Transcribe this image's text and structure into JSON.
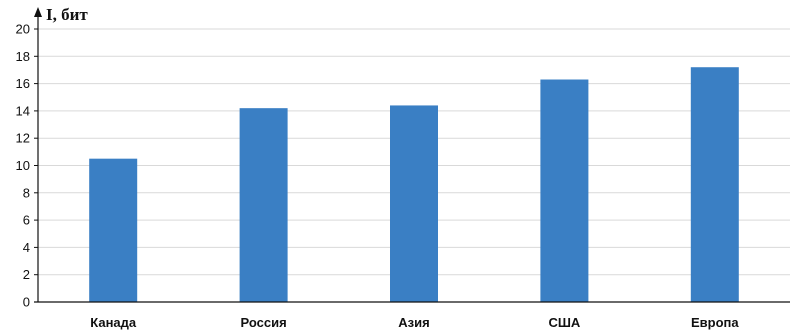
{
  "chart_data": {
    "type": "bar",
    "title": "",
    "xlabel": "",
    "ylabel": "I, бит",
    "categories": [
      "Канада",
      "Россия",
      "Азия",
      "США",
      "Европа"
    ],
    "values": [
      10.5,
      14.2,
      14.4,
      16.3,
      17.2
    ],
    "ylim": [
      0,
      20
    ],
    "yticks": [
      0,
      2,
      4,
      6,
      8,
      10,
      12,
      14,
      16,
      18,
      20
    ],
    "grid": true,
    "legend": "none",
    "colors": {
      "bar": "#3a7fc4",
      "grid": "#d9d9d9",
      "axis": "#111111"
    }
  }
}
